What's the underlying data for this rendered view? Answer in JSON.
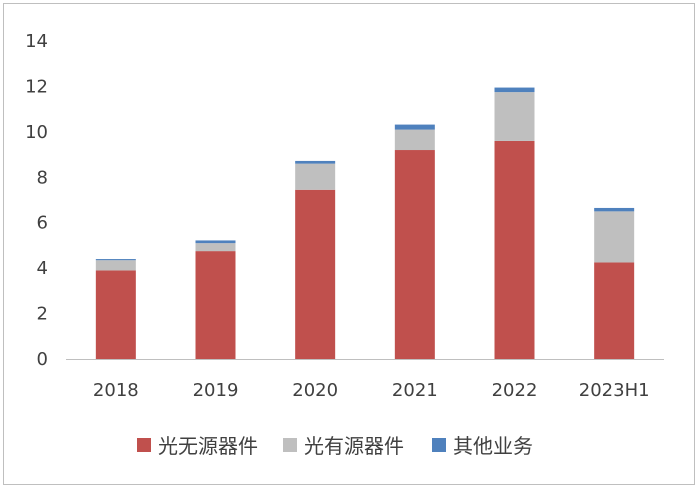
{
  "chart_data": {
    "type": "bar",
    "stacked": true,
    "title": "",
    "xlabel": "",
    "ylabel": "",
    "categories": [
      "2018",
      "2019",
      "2020",
      "2021",
      "2022",
      "2023H1"
    ],
    "ylim": [
      0,
      14
    ],
    "yticks": [
      0,
      2,
      4,
      6,
      8,
      10,
      12,
      14
    ],
    "grid": false,
    "legend_position": "bottom",
    "series": [
      {
        "name": "光无源器件",
        "color": "#c0504d",
        "values": [
          3.9,
          4.75,
          7.45,
          9.2,
          9.6,
          4.25
        ]
      },
      {
        "name": "光有源器件",
        "color": "#bfbfbf",
        "values": [
          0.45,
          0.35,
          1.15,
          0.9,
          2.15,
          2.25
        ]
      },
      {
        "name": "其他业务",
        "color": "#4f81bd",
        "values": [
          0.05,
          0.12,
          0.12,
          0.22,
          0.2,
          0.15
        ]
      }
    ]
  }
}
